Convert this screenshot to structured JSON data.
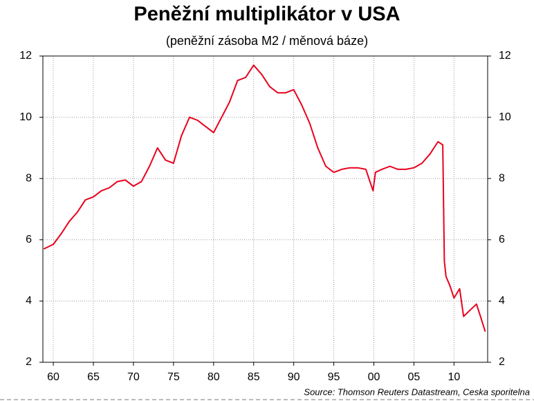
{
  "chart_data": {
    "type": "line",
    "title": "Peněžní multiplikátor v USA",
    "subtitle": "(peněžní zásoba M2 / měnová báze)",
    "source": "Source: Thomson Reuters Datastream, Ceska sporitelna",
    "color": "#e8001c",
    "grid": true,
    "xlim": [
      1958.7,
      2014.2
    ],
    "ylim": [
      2,
      12
    ],
    "y2lim": [
      2,
      12
    ],
    "xticks": [
      {
        "value": 1960,
        "label": "60"
      },
      {
        "value": 1965,
        "label": "65"
      },
      {
        "value": 1970,
        "label": "70"
      },
      {
        "value": 1975,
        "label": "75"
      },
      {
        "value": 1980,
        "label": "80"
      },
      {
        "value": 1985,
        "label": "85"
      },
      {
        "value": 1990,
        "label": "90"
      },
      {
        "value": 1995,
        "label": "95"
      },
      {
        "value": 2000,
        "label": "00"
      },
      {
        "value": 2005,
        "label": "05"
      },
      {
        "value": 2010,
        "label": "10"
      }
    ],
    "yticks": [
      2,
      4,
      6,
      8,
      10,
      12
    ],
    "y2ticks": [
      2,
      4,
      6,
      8,
      10,
      12
    ],
    "x": [
      1958.8,
      1960,
      1961,
      1962,
      1963,
      1964,
      1965,
      1966,
      1967,
      1968,
      1969,
      1970,
      1971,
      1972,
      1973,
      1974,
      1975,
      1976,
      1977,
      1978,
      1979,
      1980,
      1981,
      1982,
      1983,
      1984,
      1985,
      1986,
      1987,
      1988,
      1989,
      1990,
      1991,
      1992,
      1993,
      1994,
      1995,
      1996,
      1997,
      1998,
      1999,
      1999.9,
      2000.2,
      2001,
      2002,
      2003,
      2004,
      2005,
      2006,
      2007,
      2008,
      2008.6,
      2008.8,
      2009,
      2009.5,
      2010,
      2010.7,
      2011.2,
      2012,
      2012.8,
      2013.3,
      2013.9
    ],
    "values": [
      5.7,
      5.85,
      6.2,
      6.6,
      6.9,
      7.3,
      7.4,
      7.6,
      7.7,
      7.9,
      7.95,
      7.75,
      7.9,
      8.4,
      9.0,
      8.6,
      8.5,
      9.4,
      10.0,
      9.9,
      9.7,
      9.5,
      10.0,
      10.5,
      11.2,
      11.3,
      11.7,
      11.4,
      11.0,
      10.8,
      10.8,
      10.9,
      10.4,
      9.8,
      9.0,
      8.4,
      8.2,
      8.3,
      8.35,
      8.35,
      8.3,
      7.6,
      8.2,
      8.3,
      8.4,
      8.3,
      8.3,
      8.35,
      8.5,
      8.8,
      9.2,
      9.1,
      5.3,
      4.8,
      4.5,
      4.1,
      4.4,
      3.5,
      3.7,
      3.9,
      3.5,
      3.0
    ]
  }
}
